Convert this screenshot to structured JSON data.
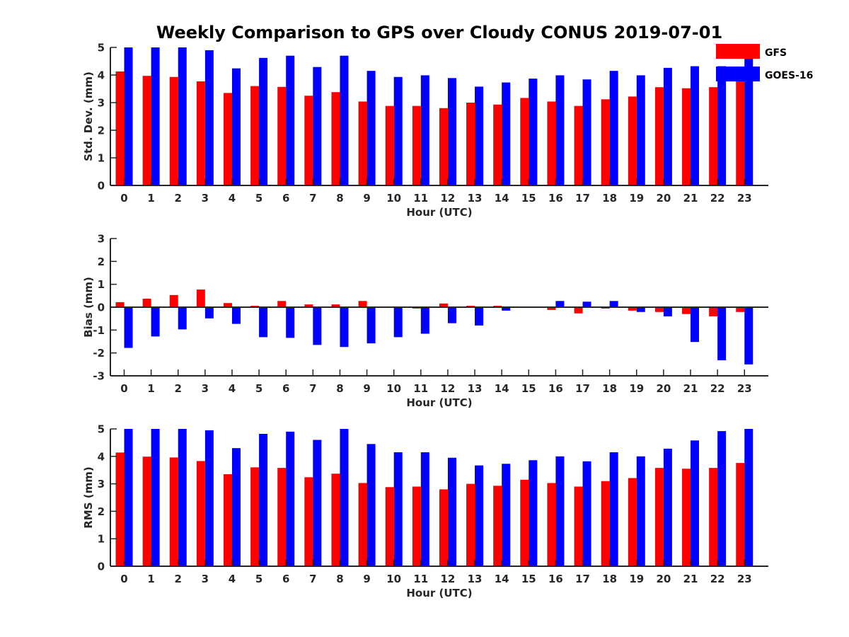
{
  "chart_data": {
    "type": "bar",
    "title": "Weekly Comparison to GPS over Cloudy CONUS 2019-07-01",
    "legend": {
      "placement": "top-right",
      "entries": [
        "GFS",
        "GOES-16"
      ]
    },
    "colors": {
      "GFS": "#ff0000",
      "GOES-16": "#0000ff",
      "axis": "#262626"
    },
    "categories": [
      "0",
      "1",
      "2",
      "3",
      "4",
      "5",
      "6",
      "7",
      "8",
      "9",
      "10",
      "11",
      "12",
      "13",
      "14",
      "15",
      "16",
      "17",
      "18",
      "19",
      "20",
      "21",
      "22",
      "23"
    ],
    "panels": [
      {
        "ylabel": "Std. Dev. (mm)",
        "xlabel": "Hour (UTC)",
        "ylim": [
          0,
          5
        ],
        "yticks": [
          "0",
          "1",
          "2",
          "3",
          "4",
          "5"
        ],
        "grid": false,
        "series": [
          {
            "name": "GFS",
            "values": [
              4.13,
              3.97,
              3.93,
              3.77,
              3.35,
              3.6,
              3.57,
              3.25,
              3.38,
              3.04,
              2.88,
              2.88,
              2.8,
              3.0,
              2.93,
              3.17,
              3.04,
              2.88,
              3.12,
              3.22,
              3.56,
              3.52,
              3.56,
              3.78
            ]
          },
          {
            "name": "GOES-16",
            "values": [
              5.0,
              5.0,
              5.0,
              4.9,
              4.24,
              4.62,
              4.7,
              4.29,
              4.7,
              4.15,
              3.93,
              3.99,
              3.89,
              3.58,
              3.73,
              3.87,
              3.99,
              3.84,
              4.15,
              3.99,
              4.26,
              4.32,
              4.32,
              4.6
            ]
          }
        ]
      },
      {
        "ylabel": "Bias (mm)",
        "xlabel": "Hour (UTC)",
        "ylim": [
          -3,
          3
        ],
        "yticks": [
          "-3",
          "-2",
          "-1",
          "0",
          "1",
          "2",
          "3"
        ],
        "grid": false,
        "series": [
          {
            "name": "GFS",
            "values": [
              0.22,
              0.37,
              0.53,
              0.77,
              0.18,
              0.06,
              0.27,
              0.12,
              0.12,
              0.27,
              0.0,
              -0.06,
              0.16,
              0.06,
              0.06,
              -0.03,
              -0.12,
              -0.27,
              -0.06,
              -0.15,
              -0.21,
              -0.3,
              -0.4,
              -0.21
            ]
          },
          {
            "name": "GOES-16",
            "values": [
              -1.78,
              -1.28,
              -0.97,
              -0.49,
              -0.73,
              -1.31,
              -1.34,
              -1.65,
              -1.74,
              -1.58,
              -1.31,
              -1.16,
              -0.7,
              -0.8,
              -0.15,
              0.03,
              0.27,
              0.24,
              0.27,
              -0.21,
              -0.4,
              -1.52,
              -2.32,
              -2.5
            ]
          }
        ]
      },
      {
        "ylabel": "RMS (mm)",
        "xlabel": "Hour (UTC)",
        "ylim": [
          0,
          5
        ],
        "yticks": [
          "0",
          "1",
          "2",
          "3",
          "4",
          "5"
        ],
        "grid": false,
        "series": [
          {
            "name": "GFS",
            "values": [
              4.14,
              3.99,
              3.96,
              3.83,
              3.35,
              3.6,
              3.58,
              3.24,
              3.37,
              3.03,
              2.88,
              2.9,
              2.8,
              3.0,
              2.93,
              3.15,
              3.03,
              2.9,
              3.1,
              3.21,
              3.58,
              3.55,
              3.58,
              3.76
            ]
          },
          {
            "name": "GOES-16",
            "values": [
              5.0,
              5.0,
              5.0,
              4.95,
              4.3,
              4.82,
              4.9,
              4.6,
              5.0,
              4.45,
              4.15,
              4.15,
              3.95,
              3.67,
              3.73,
              3.86,
              4.0,
              3.82,
              4.15,
              4.0,
              4.28,
              4.58,
              4.92,
              5.0
            ]
          }
        ]
      }
    ]
  }
}
